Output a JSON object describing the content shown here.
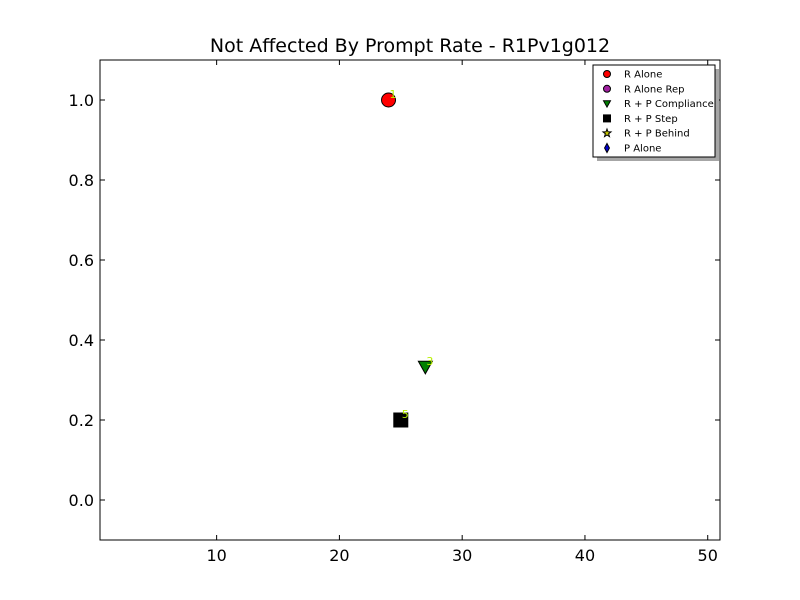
{
  "chart_data": {
    "type": "scatter",
    "title": "Not Affected By Prompt Rate - R1Pv1g012",
    "xlabel": "",
    "ylabel": "",
    "xlim": [
      0.5,
      51
    ],
    "ylim": [
      -0.1,
      1.1
    ],
    "x_ticks": [
      10,
      20,
      30,
      40,
      50
    ],
    "y_ticks": [
      0.0,
      0.2,
      0.4,
      0.6,
      0.8,
      1.0
    ],
    "x_tick_labels": [
      "10",
      "20",
      "30",
      "40",
      "50"
    ],
    "y_tick_labels": [
      "0.0",
      "0.2",
      "0.4",
      "0.6",
      "0.8",
      "1.0"
    ],
    "grid": false,
    "legend_position": "top-right",
    "series": [
      {
        "name": "R Alone",
        "marker": "circle",
        "color": "#ff0000",
        "points": [
          {
            "x": 24,
            "y": 1.0,
            "label": "1"
          }
        ]
      },
      {
        "name": "R Alone Rep",
        "marker": "circle",
        "color": "#a020a0",
        "points": []
      },
      {
        "name": "R + P Compliance",
        "marker": "triangle-down",
        "color": "#008000",
        "points": [
          {
            "x": 27,
            "y": 0.333,
            "label": "3"
          }
        ]
      },
      {
        "name": "R + P Step",
        "marker": "square",
        "color": "#000000",
        "points": [
          {
            "x": 25,
            "y": 0.2,
            "label": "5"
          }
        ]
      },
      {
        "name": "R + P Behind",
        "marker": "star",
        "color": "#c8c800",
        "points": []
      },
      {
        "name": "P Alone",
        "marker": "diamond",
        "color": "#0000cc",
        "points": []
      }
    ]
  }
}
